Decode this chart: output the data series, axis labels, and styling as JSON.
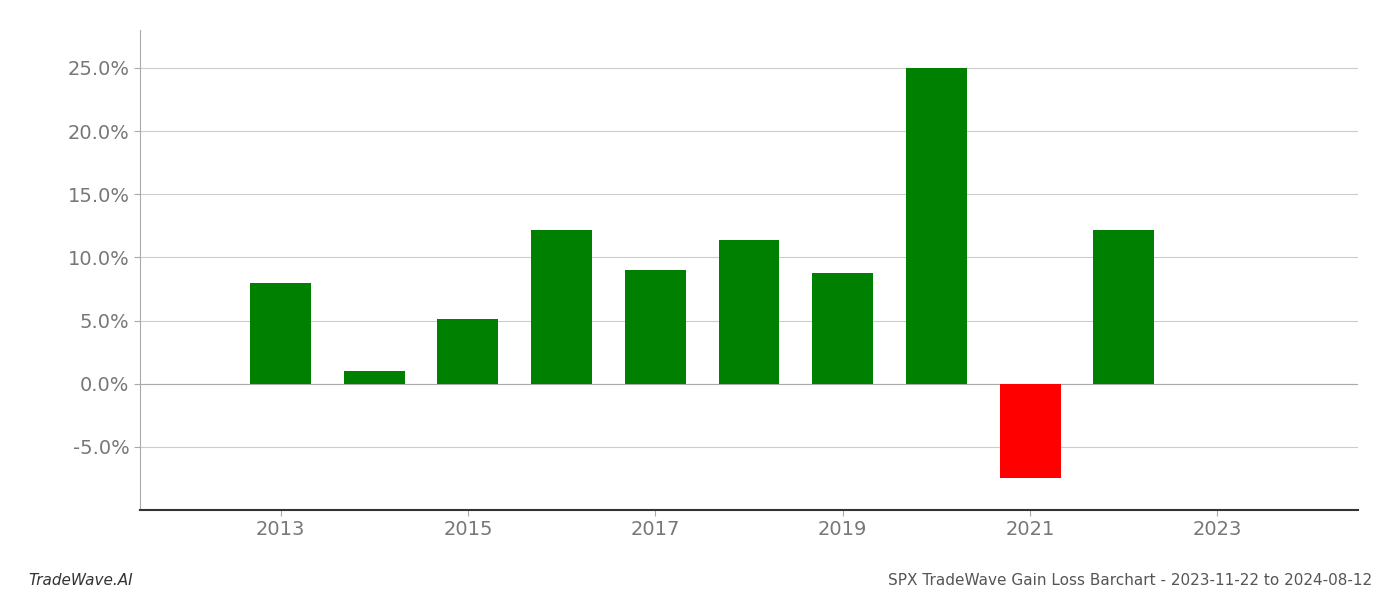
{
  "years": [
    2013,
    2014,
    2015,
    2016,
    2017,
    2018,
    2019,
    2020,
    2021,
    2022
  ],
  "values": [
    0.08,
    0.01,
    0.051,
    0.122,
    0.09,
    0.114,
    0.088,
    0.25,
    -0.075,
    0.122
  ],
  "colors": [
    "#008000",
    "#008000",
    "#008000",
    "#008000",
    "#008000",
    "#008000",
    "#008000",
    "#008000",
    "#ff0000",
    "#008000"
  ],
  "footer_left": "TradeWave.AI",
  "footer_right": "SPX TradeWave Gain Loss Barchart - 2023-11-22 to 2024-08-12",
  "ylim": [
    -0.1,
    0.28
  ],
  "yticks": [
    -0.05,
    0.0,
    0.05,
    0.1,
    0.15,
    0.2,
    0.25
  ],
  "xtick_years": [
    2013,
    2015,
    2017,
    2019,
    2021,
    2023
  ],
  "xlim": [
    2011.5,
    2024.5
  ],
  "bar_width": 0.65,
  "background_color": "#ffffff",
  "grid_color": "#cccccc",
  "axis_label_color": "#777777",
  "figsize": [
    14.0,
    6.0
  ],
  "dpi": 100
}
